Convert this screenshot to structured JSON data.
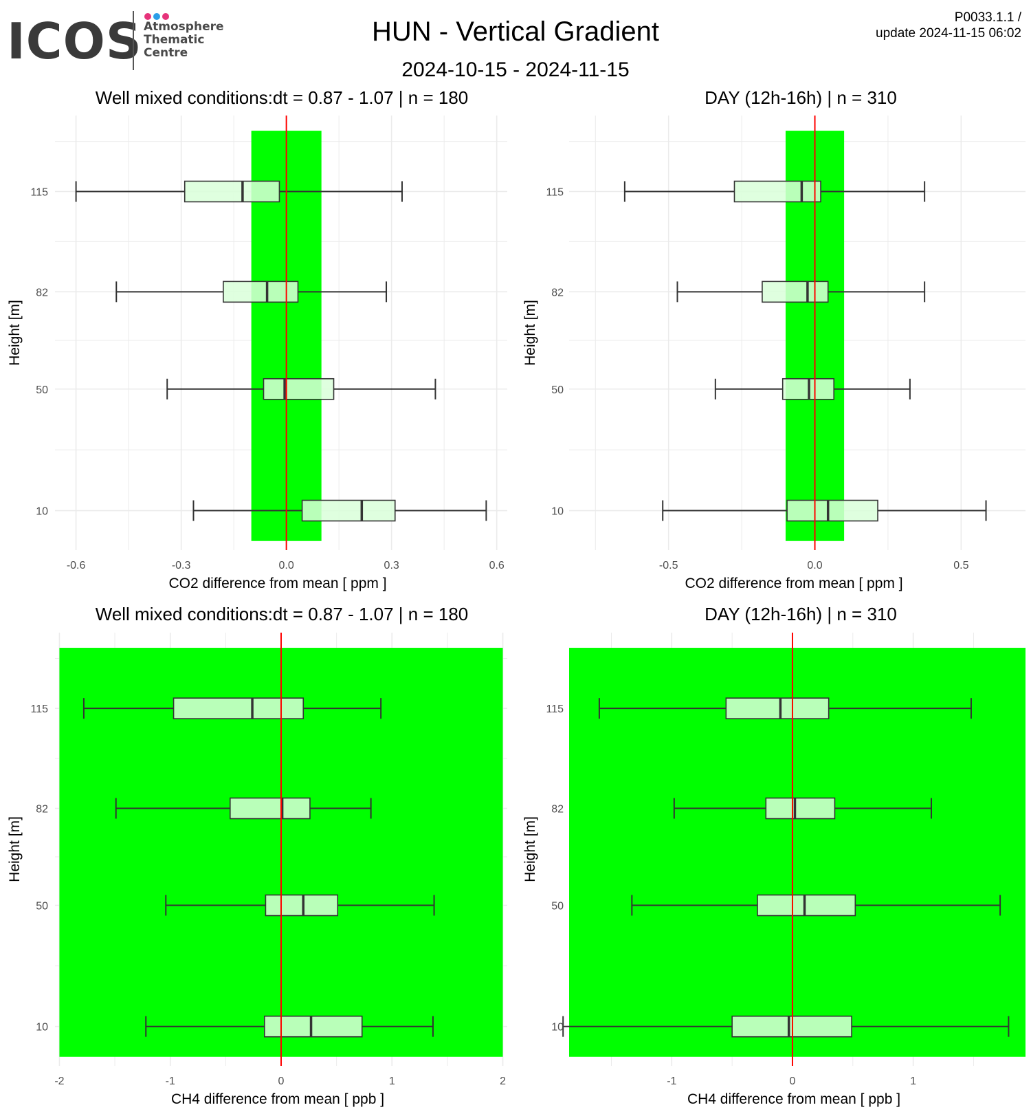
{
  "logo": {
    "word": "ICOS",
    "lines": [
      "Atmosphere",
      "Thematic",
      "Centre"
    ],
    "dot_colors": [
      "#e6337a",
      "#2b9ee8",
      "#e6337a"
    ]
  },
  "header": {
    "title": "HUN - Vertical Gradient",
    "period": "2024-10-15 - 2024-11-15",
    "product_id": "P0033.1.1 /",
    "update": "update  2024-11-15 06:02"
  },
  "colors": {
    "band": "#00ff00",
    "zero_line": "#ff0000",
    "box_fill": "#d9ffd9",
    "grid": "#ebebeb",
    "box_stroke": "#333333",
    "tick_text": "#4d4d4d"
  },
  "chart_data": [
    {
      "type": "boxplot",
      "title": "Well mixed conditions:dt = 0.87 - 1.07 | n = 180",
      "xlabel": "CO2  difference from mean [ ppm ]",
      "ylabel": "Height [m]",
      "xlim": [
        -0.66,
        0.63
      ],
      "x_ticks": [
        -0.6,
        -0.3,
        0.0,
        0.3,
        0.6
      ],
      "x_tick_labels": [
        "-0.6",
        "-0.3",
        "0.0",
        "0.3",
        "0.6"
      ],
      "heights": [
        115,
        82,
        50,
        10
      ],
      "height_labels": [
        "115",
        "82",
        "50",
        "10"
      ],
      "ylim": [
        -3,
        140
      ],
      "band": [
        -0.1,
        0.1
      ],
      "band_y": [
        0,
        135
      ],
      "boxes": [
        {
          "height": 115,
          "min": -0.6,
          "q1": -0.29,
          "median": -0.125,
          "q3": -0.02,
          "max": 0.33
        },
        {
          "height": 82,
          "min": -0.485,
          "q1": -0.18,
          "median": -0.055,
          "q3": 0.033,
          "max": 0.285
        },
        {
          "height": 50,
          "min": -0.34,
          "q1": -0.065,
          "median": -0.005,
          "q3": 0.135,
          "max": 0.425
        },
        {
          "height": 10,
          "min": -0.265,
          "q1": 0.045,
          "median": 0.215,
          "q3": 0.31,
          "max": 0.57
        }
      ]
    },
    {
      "type": "boxplot",
      "title": "DAY (12h-16h) | n = 310",
      "xlabel": "CO2  difference from mean [ ppm ]",
      "ylabel": "Height [m]",
      "xlim": [
        -0.84,
        0.72
      ],
      "x_ticks": [
        -0.5,
        0.0,
        0.5
      ],
      "x_tick_labels": [
        "-0.5",
        "0.0",
        "0.5"
      ],
      "heights": [
        115,
        82,
        50,
        10
      ],
      "height_labels": [
        "115",
        "82",
        "50",
        "10"
      ],
      "ylim": [
        -3,
        140
      ],
      "band": [
        -0.1,
        0.1
      ],
      "band_y": [
        0,
        135
      ],
      "boxes": [
        {
          "height": 115,
          "min": -0.65,
          "q1": -0.275,
          "median": -0.045,
          "q3": 0.02,
          "max": 0.375
        },
        {
          "height": 82,
          "min": -0.47,
          "q1": -0.18,
          "median": -0.025,
          "q3": 0.045,
          "max": 0.375
        },
        {
          "height": 50,
          "min": -0.34,
          "q1": -0.11,
          "median": -0.02,
          "q3": 0.065,
          "max": 0.325
        },
        {
          "height": 10,
          "min": -0.52,
          "q1": -0.095,
          "median": 0.045,
          "q3": 0.215,
          "max": 0.585
        }
      ]
    },
    {
      "type": "boxplot",
      "title": "Well mixed conditions:dt = 0.87 - 1.07 | n = 180",
      "xlabel": "CH4  difference from mean [ ppb ]",
      "ylabel": "Height [m]",
      "xlim": [
        -2.04,
        2.04
      ],
      "x_ticks": [
        -2,
        -1,
        0,
        1,
        2
      ],
      "x_tick_labels": [
        "-2",
        "-1",
        "0",
        "1",
        "2"
      ],
      "heights": [
        115,
        82,
        50,
        10
      ],
      "height_labels": [
        "115",
        "82",
        "50",
        "10"
      ],
      "ylim": [
        -3,
        140
      ],
      "band": [
        -2,
        2
      ],
      "band_y": [
        0,
        135
      ],
      "boxes": [
        {
          "height": 115,
          "min": -1.78,
          "q1": -0.97,
          "median": -0.26,
          "q3": 0.2,
          "max": 0.9
        },
        {
          "height": 82,
          "min": -1.49,
          "q1": -0.46,
          "median": 0.01,
          "q3": 0.26,
          "max": 0.81
        },
        {
          "height": 50,
          "min": -1.04,
          "q1": -0.14,
          "median": 0.2,
          "q3": 0.51,
          "max": 1.38
        },
        {
          "height": 10,
          "min": -1.22,
          "q1": -0.15,
          "median": 0.27,
          "q3": 0.73,
          "max": 1.37
        }
      ]
    },
    {
      "type": "boxplot",
      "title": "DAY (12h-16h) | n = 310",
      "xlabel": "CH4  difference from mean [ ppb ]",
      "ylabel": "Height [m]",
      "xlim": [
        -1.85,
        1.93
      ],
      "x_ticks": [
        -1,
        0,
        1
      ],
      "x_tick_labels": [
        "-1",
        "0",
        "1"
      ],
      "heights": [
        115,
        82,
        50,
        10
      ],
      "height_labels": [
        "115",
        "82",
        "50",
        "10"
      ],
      "ylim": [
        -3,
        140
      ],
      "band": [
        -1.85,
        1.93
      ],
      "band_y": [
        0,
        135
      ],
      "boxes": [
        {
          "height": 115,
          "min": -1.6,
          "q1": -0.55,
          "median": -0.1,
          "q3": 0.3,
          "max": 1.48
        },
        {
          "height": 82,
          "min": -0.98,
          "q1": -0.22,
          "median": 0.02,
          "q3": 0.35,
          "max": 1.15
        },
        {
          "height": 50,
          "min": -1.33,
          "q1": -0.29,
          "median": 0.1,
          "q3": 0.52,
          "max": 1.72
        },
        {
          "height": 10,
          "min": -1.9,
          "q1": -0.5,
          "median": -0.03,
          "q3": 0.49,
          "max": 1.79
        }
      ]
    }
  ]
}
